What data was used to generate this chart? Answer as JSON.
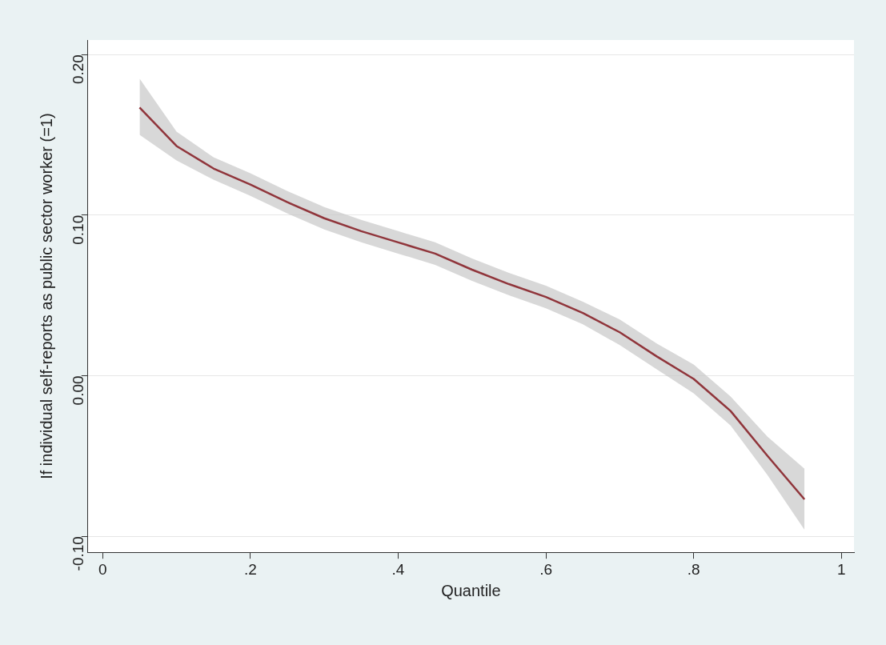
{
  "chart_data": {
    "type": "line",
    "xlabel": "Quantile",
    "ylabel": "If individual self-reports as public sector worker (=1)",
    "xlim": [
      -0.02,
      1.017
    ],
    "ylim": [
      -0.11,
      0.209
    ],
    "xticks": [
      0,
      {
        "value": 0.2,
        "label": ".2"
      },
      {
        "value": 0.4,
        "label": ".4"
      },
      {
        "value": 0.6,
        "label": ".6"
      },
      {
        "value": 0.8,
        "label": ".8"
      },
      1
    ],
    "yticks": [
      {
        "value": -0.1,
        "label": "-0.10"
      },
      {
        "value": 0,
        "label": "0.00"
      },
      {
        "value": 0.1,
        "label": "0.10"
      },
      {
        "value": 0.2,
        "label": "0.20"
      }
    ],
    "grid": "y",
    "legend": false,
    "marker": "none",
    "line_style": "solid",
    "x": [
      0.05,
      0.1,
      0.15,
      0.2,
      0.25,
      0.3,
      0.35,
      0.4,
      0.45,
      0.5,
      0.55,
      0.6,
      0.65,
      0.7,
      0.75,
      0.8,
      0.85,
      0.9,
      0.95
    ],
    "series": [
      {
        "color": "#90353b",
        "values": [
          0.167,
          0.143,
          0.129,
          0.119,
          0.108,
          0.098,
          0.09,
          0.083,
          0.076,
          0.066,
          0.057,
          0.049,
          0.039,
          0.027,
          0.012,
          -0.002,
          -0.022,
          -0.05,
          -0.077
        ],
        "lower": [
          0.15,
          0.134,
          0.122,
          0.112,
          0.101,
          0.091,
          0.083,
          0.076,
          0.069,
          0.059,
          0.05,
          0.042,
          0.032,
          0.019,
          0.004,
          -0.011,
          -0.031,
          -0.062,
          -0.096
        ],
        "upper": [
          0.185,
          0.152,
          0.136,
          0.126,
          0.115,
          0.105,
          0.097,
          0.09,
          0.083,
          0.073,
          0.064,
          0.056,
          0.046,
          0.035,
          0.02,
          0.007,
          -0.013,
          -0.038,
          -0.058
        ]
      }
    ]
  }
}
